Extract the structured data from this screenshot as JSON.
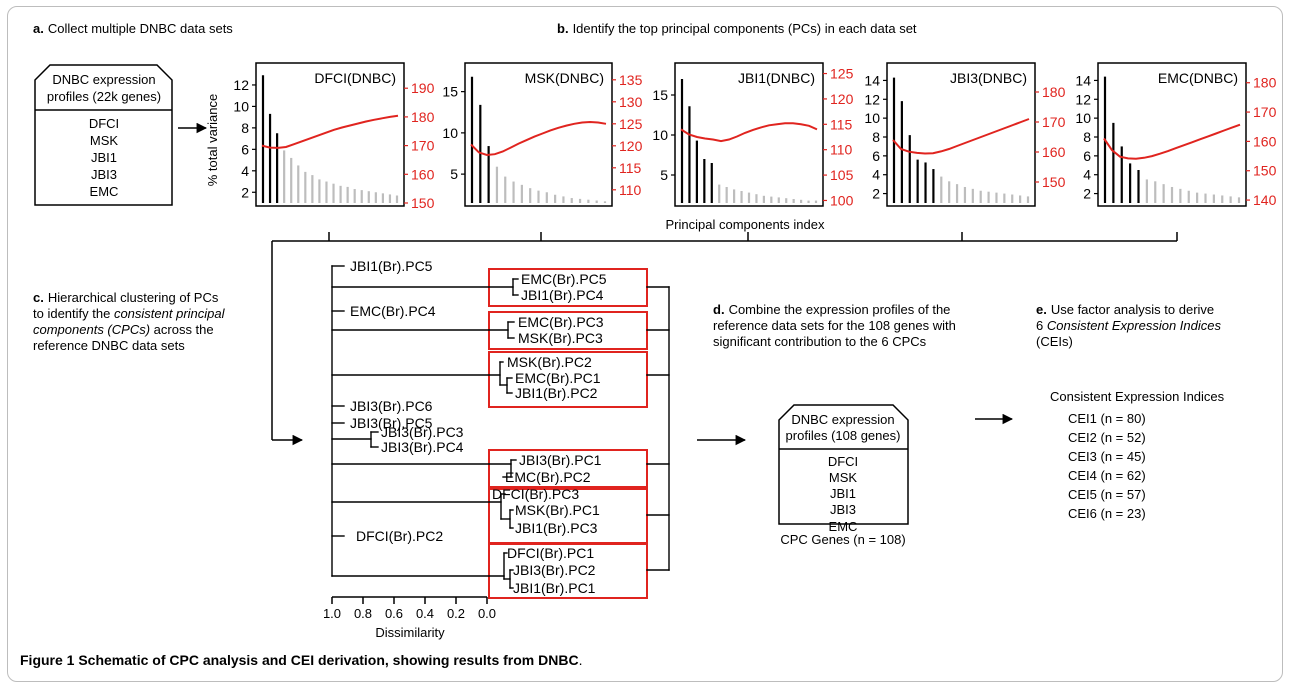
{
  "panels": {
    "a": {
      "letter": "a.",
      "text": "Collect multiple DNBC data sets"
    },
    "b": {
      "letter": "b.",
      "text": "Identify the top principal components (PCs) in each data set"
    },
    "c": {
      "letter": "c.",
      "lines": [
        "Hierarchical clustering of PCs",
        "to identify the ",
        "consistent principal",
        "components (CPCs)",
        " across the",
        "reference DNBC data sets"
      ]
    },
    "d": {
      "letter": "d.",
      "lines": [
        "Combine the expression profiles of the",
        "reference data sets for the 108 genes with",
        "significant contribution to the 6 CPCs"
      ]
    },
    "e": {
      "letter": "e.",
      "lines": [
        "Use factor analysis to derive",
        "6 ",
        "Consistent Expression Indices",
        "(CEIs)"
      ]
    }
  },
  "box22k": {
    "title_lines": [
      "DNBC expression",
      "profiles (22k genes)"
    ],
    "items": [
      "DFCI",
      "MSK",
      "JBI1",
      "JBI3",
      "EMC"
    ]
  },
  "box108": {
    "title_lines": [
      "DNBC expression",
      "profiles (108 genes)"
    ],
    "items": [
      "DFCI",
      "MSK",
      "JBI1",
      "JBI3",
      "EMC"
    ],
    "footer": "CPC Genes (n = 108)"
  },
  "pc_axes": {
    "y_left": "% total variance",
    "x": "Principal components index"
  },
  "pc_charts": [
    {
      "name": "DFCI(DNBC)",
      "left_ticks": [
        "2",
        "4",
        "6",
        "8",
        "10",
        "12"
      ],
      "right_ticks": [
        "150",
        "160",
        "170",
        "180",
        "190"
      ],
      "bars": [
        12.9,
        9.3,
        7.5,
        5.9,
        5.2,
        4.5,
        3.9,
        3.6,
        3.2,
        3.0,
        2.8,
        2.6,
        2.5,
        2.3,
        2.2,
        2.1,
        2.0,
        1.9,
        1.8,
        1.7
      ],
      "black_bars": 3,
      "left_range": [
        1,
        13.3
      ],
      "right_range": [
        150,
        196
      ],
      "curve": [
        170,
        169.3,
        169.2,
        169.5,
        170.5,
        171.5,
        172.5,
        173.5,
        174.5,
        175.5,
        176.3,
        177,
        177.7,
        178.4,
        179,
        179.5,
        180,
        180.4
      ]
    },
    {
      "name": "MSK(DNBC)",
      "left_ticks": [
        "5",
        "10",
        "15"
      ],
      "right_ticks": [
        "110",
        "115",
        "120",
        "125",
        "130",
        "135"
      ],
      "bars": [
        16.8,
        13.4,
        8.4,
        5.9,
        4.7,
        4.1,
        3.7,
        3.3,
        3.0,
        2.8,
        2.5,
        2.3,
        2.1,
        2.0,
        1.9,
        1.8,
        1.7
      ],
      "black_bars": 3,
      "left_range": [
        1.5,
        17.5
      ],
      "right_range": [
        107,
        137
      ],
      "curve": [
        120.3,
        118.5,
        117.9,
        118.1,
        118.7,
        119.6,
        120.5,
        121.3,
        122.1,
        122.8,
        123.5,
        124.1,
        124.6,
        125,
        125.3,
        125.4,
        125.3,
        125
      ]
    },
    {
      "name": "JBI1(DNBC)",
      "left_ticks": [
        "5",
        "10",
        "15"
      ],
      "right_ticks": [
        "100",
        "105",
        "110",
        "115",
        "120",
        "125"
      ],
      "bars": [
        17.0,
        13.6,
        9.3,
        7.0,
        6.5,
        3.8,
        3.5,
        3.2,
        3.0,
        2.8,
        2.6,
        2.4,
        2.3,
        2.2,
        2.1,
        2.0,
        1.9,
        1.8,
        1.8
      ],
      "black_bars": 5,
      "left_range": [
        1.5,
        18
      ],
      "right_range": [
        99.5,
        125.5
      ],
      "curve": [
        114,
        113,
        112.5,
        112.2,
        112,
        111.7,
        112,
        112.6,
        113.3,
        113.9,
        114.4,
        114.8,
        115,
        115.2,
        115.2,
        115,
        114.7,
        114
      ]
    },
    {
      "name": "JBI3(DNBC)",
      "left_ticks": [
        "2",
        "4",
        "6",
        "8",
        "10",
        "12",
        "14"
      ],
      "right_ticks": [
        "150",
        "160",
        "170",
        "180"
      ],
      "bars": [
        14.3,
        11.8,
        8.2,
        5.6,
        5.3,
        4.6,
        3.8,
        3.3,
        3.0,
        2.7,
        2.5,
        2.3,
        2.2,
        2.1,
        2.0,
        1.9,
        1.8,
        1.7
      ],
      "black_bars": 6,
      "left_range": [
        1,
        15
      ],
      "right_range": [
        143,
        187
      ],
      "curve": [
        164,
        161,
        160.1,
        159.7,
        159.5,
        159.6,
        160.2,
        161,
        162,
        163,
        164,
        165,
        166,
        167,
        168,
        169,
        170,
        171
      ]
    },
    {
      "name": "EMC(DNBC)",
      "left_ticks": [
        "2",
        "4",
        "6",
        "8",
        "10",
        "12",
        "14"
      ],
      "right_ticks": [
        "140",
        "150",
        "160",
        "170",
        "180"
      ],
      "bars": [
        14.4,
        9.5,
        7.0,
        5.2,
        4.5,
        3.5,
        3.3,
        3.0,
        2.7,
        2.5,
        2.3,
        2.1,
        2.0,
        1.9,
        1.8,
        1.7,
        1.6
      ],
      "black_bars": 5,
      "left_range": [
        1,
        15
      ],
      "right_range": [
        139,
        184
      ],
      "curve": [
        161,
        157,
        154.8,
        154.2,
        154.1,
        154.4,
        155,
        155.8,
        156.7,
        157.7,
        158.7,
        159.7,
        160.7,
        161.7,
        162.7,
        163.7,
        164.7,
        165.7
      ]
    }
  ],
  "dendro": {
    "xticks": [
      "1.0",
      "0.8",
      "0.6",
      "0.4",
      "0.2",
      "0.0"
    ],
    "xlabel": "Dissimilarity",
    "labels": {
      "JBI1_PC5": "JBI1(Br).PC5",
      "EMC_PC5": "EMC(Br).PC5",
      "JBI1_PC4": "JBI1(Br).PC4",
      "EMC_PC4": "EMC(Br).PC4",
      "EMC_PC3": "EMC(Br).PC3",
      "MSK_PC3": "MSK(Br).PC3",
      "MSK_PC2": "MSK(Br).PC2",
      "EMC_PC1": "EMC(Br).PC1",
      "JBI1_PC2": "JBI1(Br).PC2",
      "JBI3_PC6": "JBI3(Br).PC6",
      "JBI3_PC5": "JBI3(Br).PC5",
      "JBI3_PC3": "JBI3(Br).PC3",
      "JBI3_PC4": "JBI3(Br).PC4",
      "JBI3_PC1": "JBI3(Br).PC1",
      "EMC_PC2": "EMC(Br).PC2",
      "DFCI_PC3": "DFCI(Br).PC3",
      "MSK_PC1": "MSK(Br).PC1",
      "JBI1_PC3": "JBI1(Br).PC3",
      "DFCI_PC2": "DFCI(Br).PC2",
      "DFCI_PC1": "DFCI(Br).PC1",
      "JBI3_PC2": "JBI3(Br).PC2",
      "JBI1_PC1": "JBI1(Br).PC1"
    }
  },
  "cei": {
    "title": "Consistent Expression Indices",
    "items": [
      "CEI1 (n = 80)",
      "CEI2 (n = 52)",
      "CEI3 (n = 45)",
      "CEI4 (n = 62)",
      "CEI5 (n = 57)",
      "CEI6 (n = 23)"
    ]
  },
  "caption": {
    "bold": "Figure 1 Schematic of CPC analysis and CEI derivation, showing results from DNBC",
    "end": "."
  },
  "colors": {
    "red": "#e0241f",
    "grey_bar": "#bdbdbd",
    "black": "#000000",
    "red_axis": "#e0241f"
  }
}
